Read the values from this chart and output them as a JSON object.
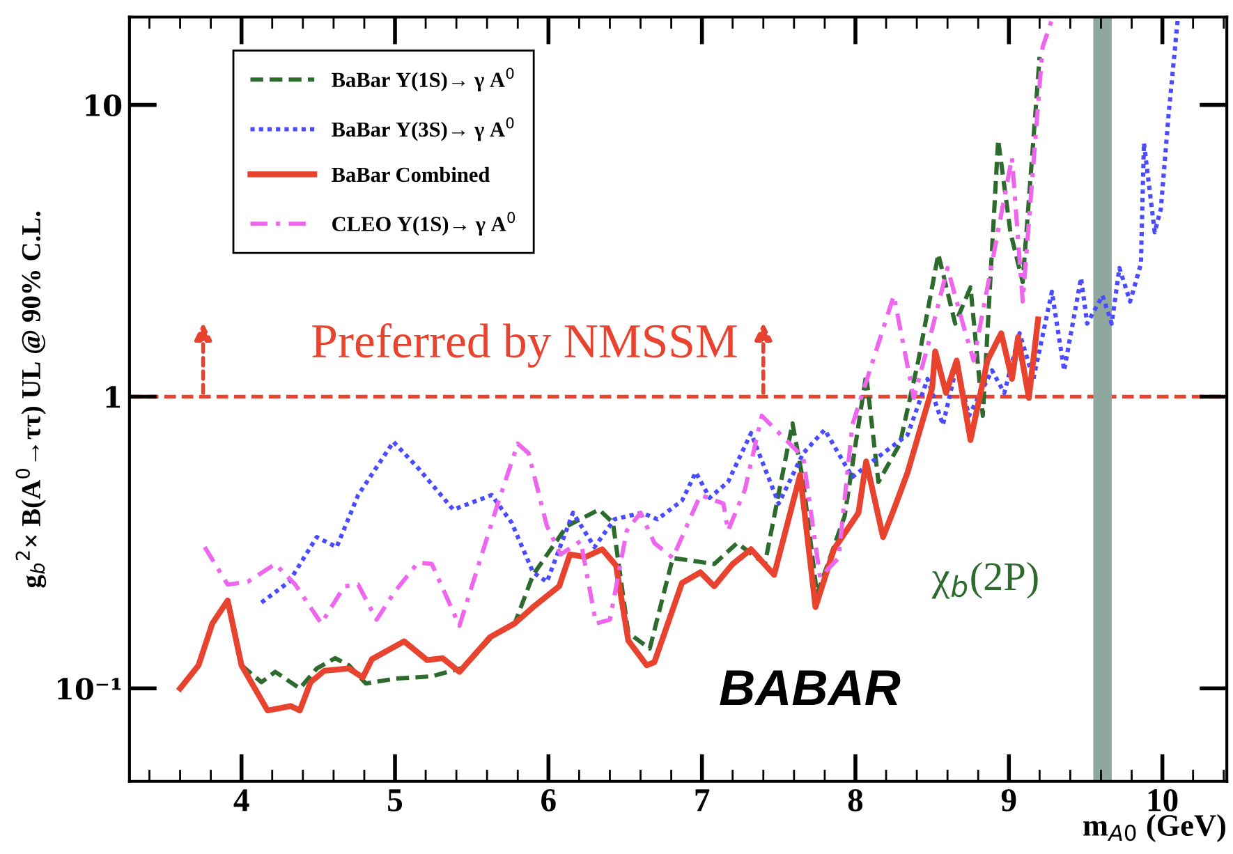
{
  "chart_data": {
    "type": "line",
    "xlabel": "m$_{A0}$ (GeV)",
    "ylabel": "g$_{b}$$^{2}$× B(A$^{0}$→ττ) UL @ 90% C.L.",
    "log": "y",
    "xlim": [
      3.27,
      10.42
    ],
    "ylim": [
      0.048,
      20
    ],
    "xticks": [
      4,
      5,
      6,
      7,
      8,
      9,
      10
    ],
    "yticks": [
      {
        "value": 0.1,
        "label": "10⁻¹"
      },
      1,
      10
    ],
    "legend": "top left",
    "grid": false,
    "series": [
      {
        "name": "BaBar Υ(1S)→ γ A$^{0}$",
        "color": "#2d6a2d",
        "line_style": "dashed",
        "x": [
          4.0,
          4.13,
          4.22,
          4.38,
          4.49,
          4.61,
          4.7,
          4.81,
          5.0,
          5.24,
          5.45,
          5.63,
          5.78,
          5.9,
          6.12,
          6.33,
          6.42,
          6.52,
          6.66,
          6.81,
          7.08,
          7.23,
          7.41,
          7.59,
          7.66,
          7.75,
          7.93,
          8.07,
          8.15,
          8.29,
          8.41,
          8.54,
          8.65,
          8.75,
          8.83,
          8.93,
          9.01,
          9.09,
          9.2
        ],
        "values": [
          0.12,
          0.105,
          0.114,
          0.1,
          0.117,
          0.127,
          0.12,
          0.104,
          0.108,
          0.11,
          0.118,
          0.15,
          0.167,
          0.245,
          0.36,
          0.41,
          0.37,
          0.155,
          0.137,
          0.28,
          0.267,
          0.315,
          0.267,
          0.81,
          0.51,
          0.21,
          0.39,
          1.19,
          0.51,
          0.69,
          1.33,
          3.08,
          1.78,
          2.37,
          0.86,
          7.6,
          3.66,
          2.47,
          14.6
        ]
      },
      {
        "name": "BaBar Υ(3S)→ γ A$^{0}$",
        "color": "#4a4aff",
        "line_style": "dotted",
        "x": [
          4.13,
          4.31,
          4.49,
          4.62,
          4.76,
          4.99,
          5.15,
          5.38,
          5.63,
          5.76,
          5.9,
          5.99,
          6.16,
          6.3,
          6.43,
          6.61,
          6.71,
          6.87,
          6.96,
          7.05,
          7.17,
          7.32,
          7.5,
          7.66,
          7.8,
          7.98,
          8.11,
          8.34,
          8.47,
          8.57,
          8.66,
          8.74,
          8.89,
          8.97,
          9.07,
          9.16,
          9.28,
          9.36,
          9.47,
          9.51,
          9.61,
          9.67,
          9.72,
          9.79,
          9.86,
          9.88,
          9.95,
          9.99,
          10.04,
          10.1
        ],
        "values": [
          0.197,
          0.232,
          0.33,
          0.305,
          0.46,
          0.7,
          0.57,
          0.41,
          0.46,
          0.37,
          0.25,
          0.232,
          0.4,
          0.305,
          0.38,
          0.4,
          0.38,
          0.44,
          0.55,
          0.45,
          0.51,
          0.75,
          0.43,
          0.64,
          0.77,
          0.53,
          0.6,
          0.74,
          1.15,
          0.8,
          1.28,
          0.86,
          1.23,
          1.03,
          1.65,
          1.15,
          2.29,
          1.23,
          2.55,
          1.78,
          2.22,
          1.78,
          2.76,
          2.12,
          2.85,
          7.4,
          3.66,
          4.4,
          9.2,
          19.6
        ]
      },
      {
        "name": "BaBar Combined",
        "color": "#e8432f",
        "line_style": "solid",
        "x": [
          3.6,
          3.72,
          3.81,
          3.91,
          4.0,
          4.17,
          4.32,
          4.38,
          4.45,
          4.54,
          4.7,
          4.79,
          4.85,
          5.06,
          5.21,
          5.31,
          5.42,
          5.62,
          5.78,
          5.9,
          6.07,
          6.14,
          6.24,
          6.35,
          6.44,
          6.52,
          6.64,
          6.69,
          6.87,
          6.99,
          7.08,
          7.2,
          7.32,
          7.47,
          7.64,
          7.74,
          7.86,
          8.02,
          8.07,
          8.18,
          8.25,
          8.34,
          8.5,
          8.52,
          8.59,
          8.66,
          8.75,
          8.86,
          8.95,
          9.02,
          9.06,
          9.13,
          9.19
        ],
        "values": [
          0.1,
          0.12,
          0.167,
          0.2,
          0.12,
          0.084,
          0.087,
          0.084,
          0.105,
          0.115,
          0.117,
          0.109,
          0.126,
          0.145,
          0.125,
          0.127,
          0.114,
          0.15,
          0.167,
          0.19,
          0.224,
          0.288,
          0.282,
          0.3,
          0.264,
          0.146,
          0.12,
          0.123,
          0.23,
          0.25,
          0.224,
          0.267,
          0.3,
          0.245,
          0.54,
          0.19,
          0.3,
          0.4,
          0.6,
          0.33,
          0.41,
          0.55,
          1.07,
          1.43,
          1.03,
          1.33,
          0.71,
          1.33,
          1.65,
          1.15,
          1.6,
          0.99,
          1.84
        ]
      },
      {
        "name": "CLEO Υ(1S)→ γ A$^{0}$",
        "color": "#ee66ee",
        "line_style": "dashdot",
        "x": [
          3.76,
          3.91,
          4.04,
          4.22,
          4.35,
          4.52,
          4.67,
          4.76,
          4.88,
          5.0,
          5.15,
          5.24,
          5.42,
          5.49,
          5.67,
          5.8,
          5.87,
          5.99,
          6.08,
          6.21,
          6.31,
          6.4,
          6.51,
          6.6,
          6.69,
          6.81,
          6.99,
          7.14,
          7.17,
          7.28,
          7.39,
          7.66,
          7.77,
          7.89,
          7.98,
          8.25,
          8.38,
          8.47,
          8.6,
          8.7,
          8.77,
          9.02,
          9.09,
          9.16,
          9.22,
          9.28
        ],
        "values": [
          0.305,
          0.227,
          0.232,
          0.267,
          0.227,
          0.167,
          0.224,
          0.227,
          0.172,
          0.215,
          0.27,
          0.267,
          0.164,
          0.215,
          0.43,
          0.69,
          0.64,
          0.36,
          0.288,
          0.32,
          0.167,
          0.172,
          0.347,
          0.4,
          0.315,
          0.28,
          0.46,
          0.43,
          0.347,
          0.48,
          0.86,
          0.62,
          0.24,
          0.28,
          0.8,
          2.22,
          0.99,
          1.48,
          2.76,
          1.78,
          1.33,
          6.6,
          2.12,
          6.3,
          15.8,
          19.6
        ]
      }
    ],
    "ref_lines": [
      {
        "axis": "y",
        "value": 1,
        "color": "#e8432f",
        "line_style": "dashed"
      }
    ],
    "bands": [
      {
        "axis": "x",
        "from": 9.55,
        "to": 9.67,
        "label": "χ$_{b}$(2P)",
        "color": "#8fa89d"
      }
    ],
    "annotations": [
      "Preferred by NMSSM",
      "BABAR"
    ]
  }
}
